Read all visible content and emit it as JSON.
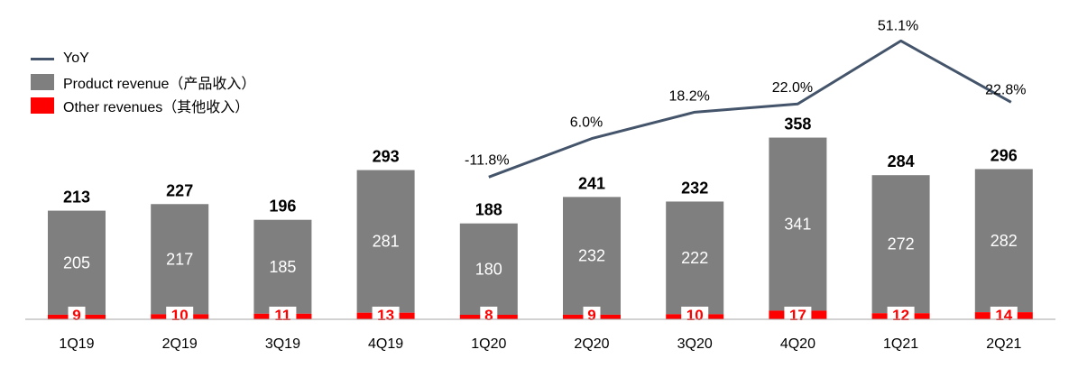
{
  "chart_data": {
    "type": "bar",
    "categories": [
      "1Q19",
      "2Q19",
      "3Q19",
      "4Q19",
      "1Q20",
      "2Q20",
      "3Q20",
      "4Q20",
      "1Q21",
      "2Q21"
    ],
    "totals": [
      213,
      227,
      196,
      293,
      188,
      241,
      232,
      358,
      284,
      296
    ],
    "series": [
      {
        "name": "Product revenue（产品收入）",
        "values": [
          205,
          217,
          185,
          281,
          180,
          232,
          222,
          341,
          272,
          282
        ],
        "color": "#7F7F7F"
      },
      {
        "name": "Other revenues（其他收入）",
        "values": [
          9,
          10,
          11,
          13,
          8,
          9,
          10,
          17,
          12,
          14
        ],
        "color": "#FF0000"
      }
    ],
    "line": {
      "name": "YoY",
      "color": "#44546A",
      "categories": [
        "1Q20",
        "2Q20",
        "3Q20",
        "4Q20",
        "1Q21",
        "2Q21"
      ],
      "values": [
        -11.8,
        6.0,
        18.2,
        22.0,
        51.1,
        22.8
      ],
      "labels": [
        "-11.8%",
        "6.0%",
        "18.2%",
        "22.0%",
        "51.1%",
        "22.8%"
      ]
    },
    "legend_position": "top-left"
  }
}
